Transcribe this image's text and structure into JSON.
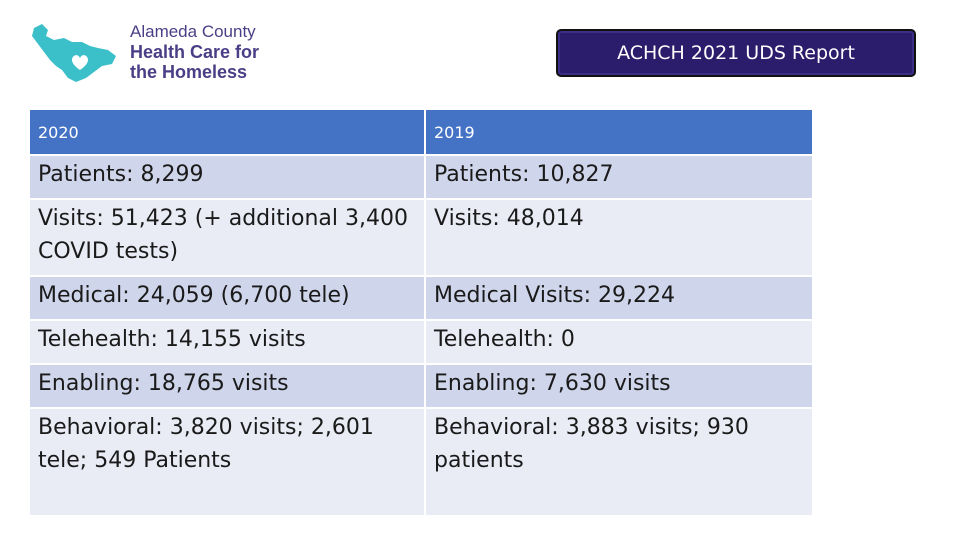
{
  "logo": {
    "line1": "Alameda County",
    "line2": "Health Care for",
    "line3": "the Homeless",
    "accent_color": "#3bbfc9",
    "text_color": "#4a3f86"
  },
  "title": "ACHCH 2021 UDS Report",
  "table": {
    "headers": [
      "2020",
      "2019"
    ],
    "rows": [
      {
        "c1_label": "Patients",
        "c1_value": ":  8,299",
        "c2_label": "Patients",
        "c2_value": ":  10,827"
      },
      {
        "c1_label": "Visits",
        "c1_value": ":  51,423 (+ additional 3,400 COVID tests)",
        "c2_label": "Visits",
        "c2_value": ":  48,014"
      },
      {
        "c1_label": "Medical",
        "c1_value": ": 24,059 (6,700 tele)",
        "c2_label": "Medical Visits",
        "c2_value": ": 29,224"
      },
      {
        "c1_label": "Telehealth",
        "c1_value": ": 14,155 visits",
        "c2_label": "Telehealth",
        "c2_value": ": 0"
      },
      {
        "c1_label": "Enabling",
        "c1_value": ":  18,765 visits",
        "c2_label": "Enabling",
        "c2_value": ": 7,630 visits"
      },
      {
        "c1_label": "Behavioral",
        "c1_value": ":   3,820 visits; 2,601 tele;  549 Patients",
        "c2_label": "Behavioral",
        "c2_value": ":  3,883 visits; 930 patients"
      }
    ]
  }
}
